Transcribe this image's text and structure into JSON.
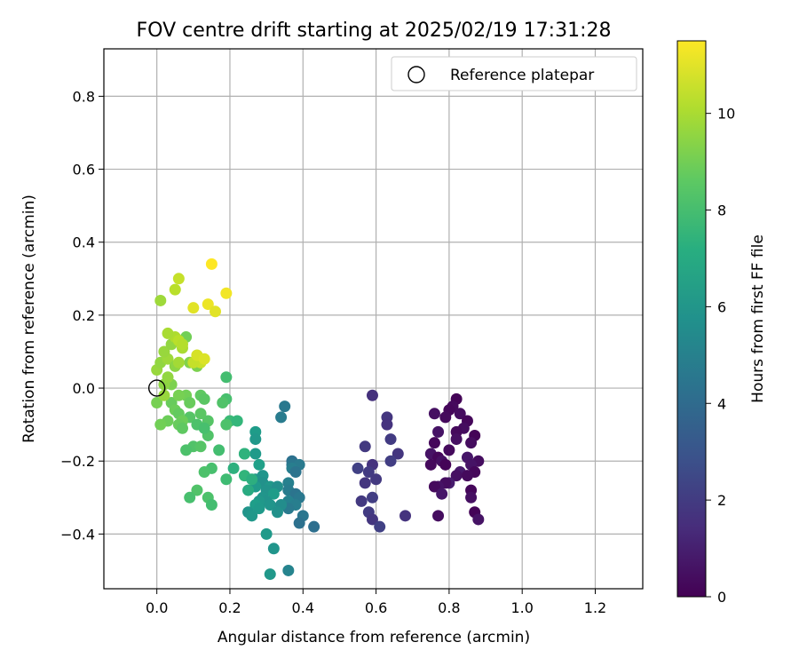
{
  "chart_data": {
    "type": "scatter",
    "title": "FOV centre drift starting at 2025/02/19 17:31:28",
    "xlabel": "Angular distance from reference (arcmin)",
    "ylabel": "Rotation from reference (arcmin)",
    "xlim": [
      -0.145,
      1.33
    ],
    "ylim": [
      -0.55,
      0.93
    ],
    "xticks": [
      "0.0",
      "0.2",
      "0.4",
      "0.6",
      "0.8",
      "1.0",
      "1.2"
    ],
    "xtick_values": [
      0,
      0.2,
      0.4,
      0.6,
      0.8,
      1.0,
      1.2
    ],
    "yticks": [
      "0.8",
      "0.6",
      "0.4",
      "0.2",
      "0.0",
      "−0.2",
      "−0.4"
    ],
    "ytick_values": [
      0.8,
      0.6,
      0.4,
      0.2,
      0,
      -0.2,
      -0.4
    ],
    "grid": true,
    "colormap": "viridis",
    "legend": {
      "label": "Reference platepar",
      "placement": "top-right"
    },
    "reference_point": {
      "x": 0.0,
      "y": 0.0
    },
    "colorbar": {
      "label": "Hours from first FF file",
      "range": [
        0,
        11.5
      ],
      "ticks": [
        "0",
        "2",
        "4",
        "6",
        "8",
        "10"
      ],
      "tick_values": [
        0,
        2,
        4,
        6,
        8,
        10
      ]
    },
    "points": [
      [
        0.82,
        -0.03,
        0.1
      ],
      [
        0.81,
        -0.05,
        0.3
      ],
      [
        0.8,
        -0.06,
        0.2
      ],
      [
        0.83,
        -0.07,
        0.4
      ],
      [
        0.76,
        -0.07,
        0.5
      ],
      [
        0.79,
        -0.08,
        0.3
      ],
      [
        0.85,
        -0.09,
        0.2
      ],
      [
        0.84,
        -0.11,
        0.4
      ],
      [
        0.82,
        -0.12,
        0.3
      ],
      [
        0.77,
        -0.12,
        0.6
      ],
      [
        0.87,
        -0.13,
        0.1
      ],
      [
        0.82,
        -0.14,
        0.5
      ],
      [
        0.76,
        -0.15,
        0.2
      ],
      [
        0.86,
        -0.15,
        0.4
      ],
      [
        0.8,
        -0.17,
        0.3
      ],
      [
        0.75,
        -0.18,
        0.6
      ],
      [
        0.85,
        -0.19,
        0.7
      ],
      [
        0.77,
        -0.19,
        0.2
      ],
      [
        0.88,
        -0.2,
        0.4
      ],
      [
        0.78,
        -0.2,
        0.5
      ],
      [
        0.75,
        -0.21,
        0.3
      ],
      [
        0.86,
        -0.21,
        0.6
      ],
      [
        0.79,
        -0.21,
        0.1
      ],
      [
        0.87,
        -0.23,
        0.2
      ],
      [
        0.83,
        -0.23,
        0.8
      ],
      [
        0.82,
        -0.24,
        0.5
      ],
      [
        0.85,
        -0.24,
        0.3
      ],
      [
        0.8,
        -0.26,
        0.9
      ],
      [
        0.79,
        -0.26,
        0.4
      ],
      [
        0.77,
        -0.27,
        0.6
      ],
      [
        0.86,
        -0.28,
        0.2
      ],
      [
        0.76,
        -0.27,
        0.3
      ],
      [
        0.78,
        -0.29,
        0.7
      ],
      [
        0.86,
        -0.3,
        0.5
      ],
      [
        0.77,
        -0.35,
        0.4
      ],
      [
        0.87,
        -0.34,
        0.1
      ],
      [
        0.88,
        -0.36,
        0.6
      ],
      [
        0.59,
        -0.02,
        1.6
      ],
      [
        0.63,
        -0.08,
        1.8
      ],
      [
        0.63,
        -0.1,
        1.7
      ],
      [
        0.64,
        -0.14,
        2.0
      ],
      [
        0.57,
        -0.16,
        1.9
      ],
      [
        0.66,
        -0.18,
        1.8
      ],
      [
        0.64,
        -0.2,
        2.1
      ],
      [
        0.59,
        -0.21,
        1.7
      ],
      [
        0.55,
        -0.22,
        2.2
      ],
      [
        0.58,
        -0.23,
        2.0
      ],
      [
        0.6,
        -0.25,
        1.9
      ],
      [
        0.57,
        -0.26,
        1.8
      ],
      [
        0.59,
        -0.3,
        2.1
      ],
      [
        0.56,
        -0.31,
        1.9
      ],
      [
        0.58,
        -0.34,
        2.0
      ],
      [
        0.59,
        -0.36,
        1.8
      ],
      [
        0.61,
        -0.38,
        2.2
      ],
      [
        0.68,
        -0.35,
        1.7
      ],
      [
        0.35,
        -0.05,
        4.6
      ],
      [
        0.34,
        -0.08,
        4.8
      ],
      [
        0.37,
        -0.2,
        4.3
      ],
      [
        0.37,
        -0.21,
        4.5
      ],
      [
        0.39,
        -0.21,
        4.7
      ],
      [
        0.37,
        -0.22,
        4.9
      ],
      [
        0.38,
        -0.23,
        4.4
      ],
      [
        0.36,
        -0.26,
        5.0
      ],
      [
        0.36,
        -0.28,
        4.8
      ],
      [
        0.38,
        -0.29,
        4.4
      ],
      [
        0.39,
        -0.3,
        4.6
      ],
      [
        0.36,
        -0.31,
        5.1
      ],
      [
        0.38,
        -0.32,
        4.9
      ],
      [
        0.36,
        -0.33,
        4.7
      ],
      [
        0.4,
        -0.35,
        4.5
      ],
      [
        0.39,
        -0.37,
        4.3
      ],
      [
        0.43,
        -0.38,
        4.2
      ],
      [
        0.36,
        -0.5,
        5.2
      ],
      [
        0.27,
        -0.12,
        6.3
      ],
      [
        0.27,
        -0.14,
        6.1
      ],
      [
        0.24,
        -0.18,
        6.6
      ],
      [
        0.27,
        -0.18,
        6.2
      ],
      [
        0.28,
        -0.21,
        6.5
      ],
      [
        0.29,
        -0.24,
        6.0
      ],
      [
        0.27,
        -0.25,
        5.9
      ],
      [
        0.29,
        -0.26,
        5.8
      ],
      [
        0.27,
        -0.27,
        6.2
      ],
      [
        0.31,
        -0.27,
        6.1
      ],
      [
        0.33,
        -0.27,
        5.7
      ],
      [
        0.3,
        -0.28,
        5.9
      ],
      [
        0.32,
        -0.29,
        6.3
      ],
      [
        0.29,
        -0.3,
        6.0
      ],
      [
        0.3,
        -0.31,
        5.9
      ],
      [
        0.28,
        -0.31,
        6.1
      ],
      [
        0.27,
        -0.32,
        6.4
      ],
      [
        0.31,
        -0.32,
        6.0
      ],
      [
        0.34,
        -0.32,
        5.6
      ],
      [
        0.28,
        -0.33,
        6.2
      ],
      [
        0.25,
        -0.34,
        6.0
      ],
      [
        0.33,
        -0.34,
        5.8
      ],
      [
        0.26,
        -0.35,
        6.1
      ],
      [
        0.3,
        -0.4,
        6.2
      ],
      [
        0.32,
        -0.44,
        6.0
      ],
      [
        0.31,
        -0.51,
        6.1
      ],
      [
        0.2,
        -0.09,
        7.8
      ],
      [
        0.22,
        -0.09,
        7.6
      ],
      [
        0.24,
        -0.18,
        7.4
      ],
      [
        0.21,
        -0.22,
        7.3
      ],
      [
        0.24,
        -0.24,
        7.5
      ],
      [
        0.26,
        -0.25,
        7.2
      ],
      [
        0.25,
        -0.28,
        7.0
      ],
      [
        0.19,
        -0.03,
        8.1
      ],
      [
        0.19,
        0.03,
        8.0
      ],
      [
        0.18,
        -0.04,
        8.3
      ],
      [
        0.19,
        -0.1,
        8.2
      ],
      [
        0.17,
        -0.17,
        8.0
      ],
      [
        0.15,
        -0.22,
        8.1
      ],
      [
        0.19,
        -0.25,
        7.9
      ],
      [
        0.13,
        -0.23,
        8.2
      ],
      [
        0.14,
        -0.13,
        8.3
      ],
      [
        0.14,
        -0.09,
        8.4
      ],
      [
        0.12,
        -0.07,
        8.5
      ],
      [
        0.09,
        -0.08,
        8.4
      ],
      [
        0.11,
        -0.1,
        8.2
      ],
      [
        0.13,
        -0.11,
        8.1
      ],
      [
        0.1,
        -0.16,
        8.3
      ],
      [
        0.08,
        -0.17,
        8.2
      ],
      [
        0.12,
        -0.16,
        8.4
      ],
      [
        0.11,
        -0.28,
        8.3
      ],
      [
        0.09,
        -0.3,
        8.1
      ],
      [
        0.14,
        -0.3,
        8.2
      ],
      [
        0.15,
        -0.32,
        8.0
      ],
      [
        0.12,
        -0.02,
        8.6
      ],
      [
        0.13,
        -0.03,
        8.5
      ],
      [
        0.04,
        -0.04,
        8.8
      ],
      [
        0.05,
        -0.06,
        8.9
      ],
      [
        0.06,
        -0.07,
        8.7
      ],
      [
        0.07,
        -0.09,
        8.9
      ],
      [
        0.06,
        -0.1,
        8.8
      ],
      [
        0.07,
        -0.11,
        8.6
      ],
      [
        0.03,
        -0.09,
        8.9
      ],
      [
        0.01,
        -0.1,
        9.0
      ],
      [
        0.0,
        -0.04,
        9.1
      ],
      [
        0.08,
        -0.02,
        9.0
      ],
      [
        0.09,
        -0.04,
        8.8
      ],
      [
        0.06,
        -0.02,
        9.1
      ],
      [
        0.04,
        0.01,
        9.2
      ],
      [
        0.08,
        0.14,
        9.0
      ],
      [
        0.09,
        0.07,
        9.3
      ],
      [
        0.11,
        0.06,
        9.2
      ],
      [
        0.0,
        0.05,
        9.7
      ],
      [
        0.01,
        0.07,
        9.6
      ],
      [
        0.03,
        0.08,
        9.8
      ],
      [
        0.02,
        0.1,
        9.7
      ],
      [
        0.04,
        0.12,
        9.6
      ],
      [
        0.05,
        0.06,
        9.5
      ],
      [
        0.06,
        0.07,
        9.9
      ],
      [
        0.02,
        0.01,
        9.5
      ],
      [
        0.03,
        0.03,
        9.6
      ],
      [
        0.02,
        -0.02,
        9.7
      ],
      [
        0.01,
        0.24,
        9.8
      ],
      [
        0.07,
        0.11,
        10.0
      ],
      [
        0.05,
        0.14,
        10.1
      ],
      [
        0.03,
        0.15,
        10.0
      ],
      [
        0.06,
        0.13,
        10.3
      ],
      [
        0.07,
        0.12,
        10.2
      ],
      [
        0.11,
        0.09,
        10.4
      ],
      [
        0.12,
        0.07,
        10.6
      ],
      [
        0.1,
        0.07,
        10.5
      ],
      [
        0.05,
        0.27,
        10.3
      ],
      [
        0.06,
        0.3,
        10.5
      ],
      [
        0.1,
        0.22,
        11.0
      ],
      [
        0.14,
        0.23,
        11.2
      ],
      [
        0.16,
        0.21,
        11.0
      ],
      [
        0.19,
        0.26,
        11.3
      ],
      [
        0.15,
        0.34,
        11.5
      ],
      [
        0.11,
        0.09,
        10.8
      ],
      [
        0.13,
        0.08,
        10.9
      ]
    ]
  }
}
